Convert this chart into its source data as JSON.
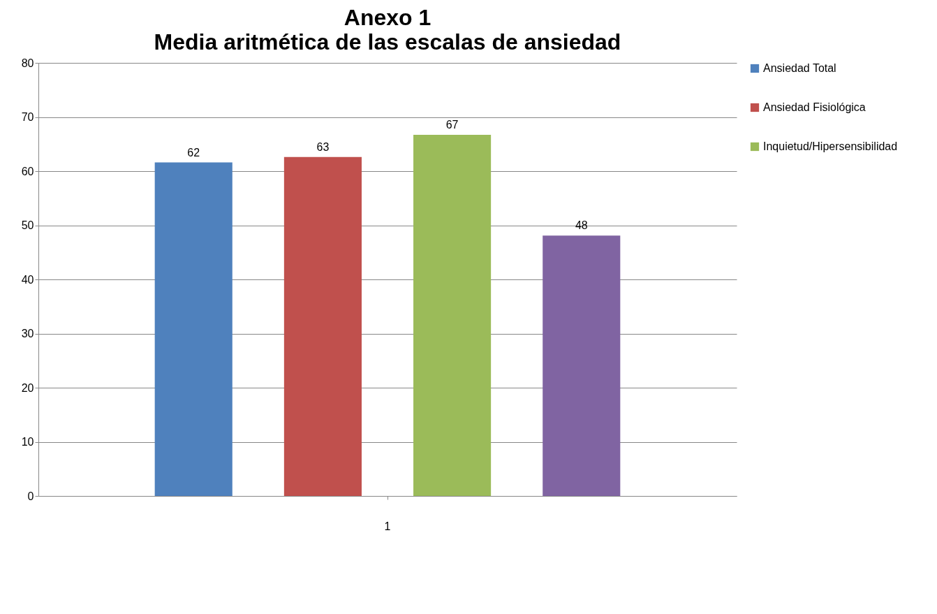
{
  "chart_data": {
    "type": "bar",
    "title": "Anexo 1",
    "subtitle": "Media aritmética de las escalas de ansiedad",
    "categories": [
      "1"
    ],
    "series": [
      {
        "name": "Ansiedad Total",
        "color": "#4f81bd",
        "values": [
          61.6
        ],
        "value_labels": [
          "62"
        ]
      },
      {
        "name": "Ansiedad Fisiológica",
        "color": "#c0504d",
        "values": [
          62.6
        ],
        "value_labels": [
          "63"
        ]
      },
      {
        "name": "Inquietud/Hipersensibilidad",
        "color": "#9bbb59",
        "values": [
          66.7
        ],
        "value_labels": [
          "67"
        ]
      },
      {
        "color": "#8064a2",
        "values": [
          48.1
        ],
        "value_labels": [
          "48"
        ]
      }
    ],
    "ylim": [
      0,
      80
    ],
    "yticks": [
      0,
      10,
      20,
      30,
      40,
      50,
      60,
      70,
      80
    ],
    "grid": "y",
    "legend": "right"
  }
}
